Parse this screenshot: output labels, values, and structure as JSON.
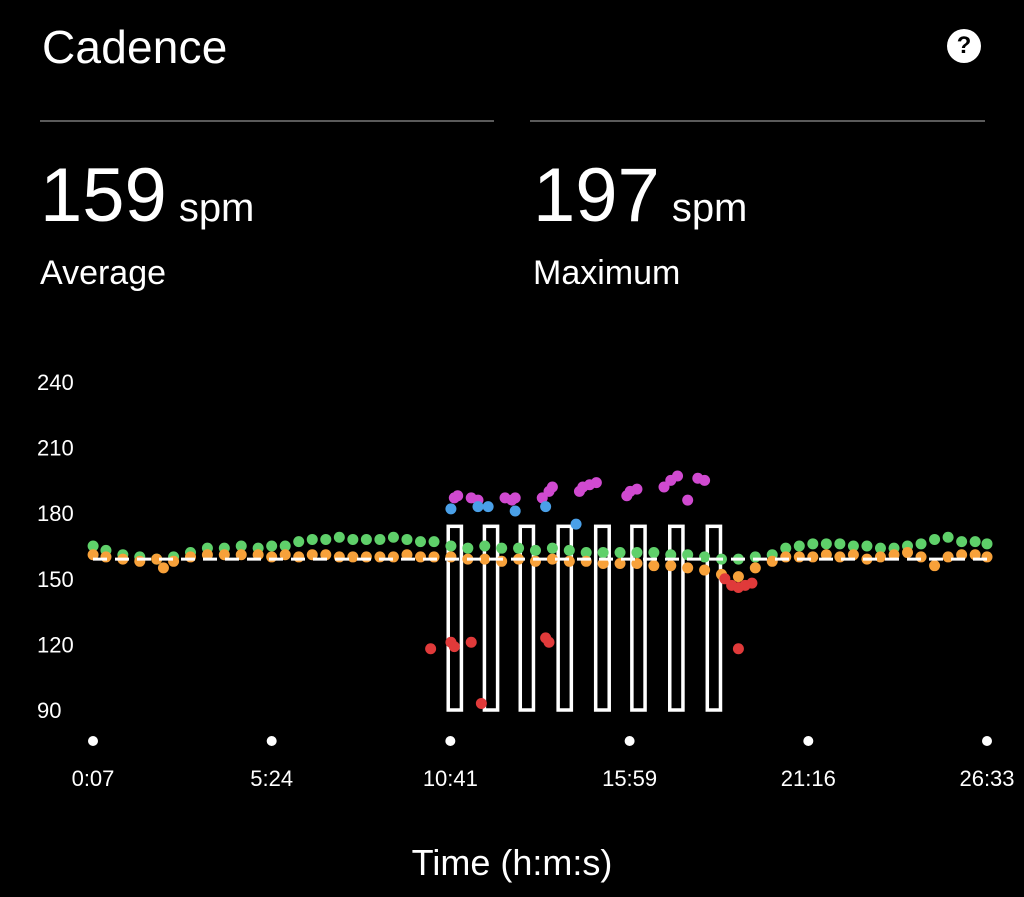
{
  "header": {
    "title": "Cadence",
    "help_icon": "?"
  },
  "stats": {
    "average": {
      "value": "159",
      "unit": "spm",
      "label": "Average"
    },
    "maximum": {
      "value": "197",
      "unit": "spm",
      "label": "Maximum"
    }
  },
  "chart_data": {
    "type": "scatter",
    "xlabel": "Time (h:m:s)",
    "ylabel": "",
    "ylim": [
      90,
      240
    ],
    "xlim": [
      0.117,
      26.55
    ],
    "y_ticks": [
      240,
      210,
      180,
      150,
      120,
      90
    ],
    "x_ticks": [
      {
        "value": 0.117,
        "label": "0:07"
      },
      {
        "value": 5.4,
        "label": "5:24"
      },
      {
        "value": 10.683,
        "label": "10:41"
      },
      {
        "value": 15.983,
        "label": "15:59"
      },
      {
        "value": 21.267,
        "label": "21:16"
      },
      {
        "value": 26.55,
        "label": "26:33"
      }
    ],
    "average_line": 159,
    "colors": {
      "green": "#5fd06a",
      "orange": "#f7a13a",
      "red": "#e03a3a",
      "purple": "#d04ad0",
      "blue": "#4aa0e8",
      "background": "#000000",
      "foreground": "#ffffff"
    },
    "series": [
      {
        "color": "green",
        "points": [
          [
            0.12,
            165
          ],
          [
            0.5,
            163
          ],
          [
            1.0,
            161
          ],
          [
            1.5,
            160
          ],
          [
            2.0,
            159
          ],
          [
            2.5,
            160
          ],
          [
            3.0,
            162
          ],
          [
            3.5,
            164
          ],
          [
            4.0,
            164
          ],
          [
            4.5,
            165
          ],
          [
            5.0,
            164
          ],
          [
            5.4,
            165
          ],
          [
            5.8,
            165
          ],
          [
            6.2,
            167
          ],
          [
            6.6,
            168
          ],
          [
            7.0,
            168
          ],
          [
            7.4,
            169
          ],
          [
            7.8,
            168
          ],
          [
            8.2,
            168
          ],
          [
            8.6,
            168
          ],
          [
            9.0,
            169
          ],
          [
            9.4,
            168
          ],
          [
            9.8,
            167
          ],
          [
            10.2,
            167
          ],
          [
            10.7,
            165
          ],
          [
            11.2,
            164
          ],
          [
            11.7,
            165
          ],
          [
            12.2,
            164
          ],
          [
            12.7,
            164
          ],
          [
            13.2,
            163
          ],
          [
            13.7,
            164
          ],
          [
            14.2,
            163
          ],
          [
            14.7,
            162
          ],
          [
            15.2,
            162
          ],
          [
            15.7,
            162
          ],
          [
            16.2,
            162
          ],
          [
            16.7,
            162
          ],
          [
            17.2,
            161
          ],
          [
            17.7,
            161
          ],
          [
            18.2,
            160
          ],
          [
            18.7,
            159
          ],
          [
            19.2,
            159
          ],
          [
            19.7,
            160
          ],
          [
            20.2,
            161
          ],
          [
            20.6,
            164
          ],
          [
            21.0,
            165
          ],
          [
            21.4,
            166
          ],
          [
            21.8,
            166
          ],
          [
            22.2,
            166
          ],
          [
            22.6,
            165
          ],
          [
            23.0,
            165
          ],
          [
            23.4,
            164
          ],
          [
            23.8,
            164
          ],
          [
            24.2,
            165
          ],
          [
            24.6,
            166
          ],
          [
            25.0,
            168
          ],
          [
            25.4,
            169
          ],
          [
            25.8,
            167
          ],
          [
            26.2,
            167
          ],
          [
            26.55,
            166
          ]
        ]
      },
      {
        "color": "orange",
        "points": [
          [
            0.12,
            161
          ],
          [
            0.5,
            160
          ],
          [
            1.0,
            159
          ],
          [
            1.5,
            158
          ],
          [
            2.0,
            159
          ],
          [
            2.2,
            155
          ],
          [
            2.5,
            158
          ],
          [
            3.0,
            160
          ],
          [
            3.5,
            161
          ],
          [
            4.0,
            161
          ],
          [
            4.5,
            161
          ],
          [
            5.0,
            161
          ],
          [
            5.4,
            160
          ],
          [
            5.8,
            161
          ],
          [
            6.2,
            160
          ],
          [
            6.6,
            161
          ],
          [
            7.0,
            161
          ],
          [
            7.4,
            160
          ],
          [
            7.8,
            160
          ],
          [
            8.2,
            160
          ],
          [
            8.6,
            160
          ],
          [
            9.0,
            160
          ],
          [
            9.4,
            161
          ],
          [
            9.8,
            160
          ],
          [
            10.2,
            160
          ],
          [
            10.7,
            160
          ],
          [
            11.2,
            159
          ],
          [
            11.7,
            159
          ],
          [
            12.2,
            158
          ],
          [
            12.7,
            159
          ],
          [
            13.2,
            158
          ],
          [
            13.7,
            159
          ],
          [
            14.2,
            158
          ],
          [
            14.7,
            158
          ],
          [
            15.2,
            157
          ],
          [
            15.7,
            157
          ],
          [
            16.2,
            157
          ],
          [
            16.7,
            156
          ],
          [
            17.2,
            156
          ],
          [
            17.7,
            155
          ],
          [
            18.2,
            154
          ],
          [
            18.7,
            152
          ],
          [
            19.2,
            151
          ],
          [
            19.7,
            155
          ],
          [
            20.2,
            158
          ],
          [
            20.6,
            160
          ],
          [
            21.0,
            160
          ],
          [
            21.4,
            160
          ],
          [
            21.8,
            161
          ],
          [
            22.2,
            160
          ],
          [
            22.6,
            161
          ],
          [
            23.0,
            159
          ],
          [
            23.4,
            160
          ],
          [
            23.8,
            161
          ],
          [
            24.2,
            162
          ],
          [
            24.6,
            160
          ],
          [
            25.0,
            156
          ],
          [
            25.4,
            160
          ],
          [
            25.8,
            161
          ],
          [
            26.2,
            161
          ],
          [
            26.55,
            160
          ]
        ]
      },
      {
        "color": "red",
        "points": [
          [
            10.1,
            118
          ],
          [
            10.7,
            121
          ],
          [
            10.8,
            119
          ],
          [
            11.3,
            121
          ],
          [
            11.6,
            93
          ],
          [
            13.5,
            123
          ],
          [
            13.6,
            121
          ],
          [
            18.8,
            150
          ],
          [
            19.0,
            147
          ],
          [
            19.2,
            146
          ],
          [
            19.4,
            147
          ],
          [
            19.6,
            148
          ],
          [
            19.2,
            118
          ]
        ]
      },
      {
        "color": "purple",
        "points": [
          [
            10.8,
            187
          ],
          [
            10.9,
            188
          ],
          [
            11.3,
            187
          ],
          [
            11.5,
            186
          ],
          [
            12.3,
            187
          ],
          [
            12.5,
            186
          ],
          [
            12.6,
            187
          ],
          [
            13.4,
            187
          ],
          [
            13.6,
            190
          ],
          [
            13.7,
            192
          ],
          [
            14.5,
            190
          ],
          [
            14.6,
            192
          ],
          [
            14.8,
            193
          ],
          [
            15.0,
            194
          ],
          [
            15.9,
            188
          ],
          [
            16.0,
            190
          ],
          [
            16.2,
            191
          ],
          [
            17.0,
            192
          ],
          [
            17.2,
            195
          ],
          [
            17.4,
            197
          ],
          [
            17.7,
            186
          ],
          [
            18.0,
            196
          ],
          [
            18.2,
            195
          ]
        ]
      },
      {
        "color": "blue",
        "points": [
          [
            10.7,
            182
          ],
          [
            11.5,
            183
          ],
          [
            11.8,
            183
          ],
          [
            12.6,
            181
          ],
          [
            13.5,
            183
          ],
          [
            14.4,
            175
          ]
        ]
      }
    ],
    "effort_bars": [
      {
        "x_start": 10.62,
        "x_end": 11.01,
        "y_top": 174
      },
      {
        "x_start": 11.69,
        "x_end": 12.08,
        "y_top": 174
      },
      {
        "x_start": 12.75,
        "x_end": 13.14,
        "y_top": 174
      },
      {
        "x_start": 13.87,
        "x_end": 14.26,
        "y_top": 174
      },
      {
        "x_start": 14.98,
        "x_end": 15.38,
        "y_top": 174
      },
      {
        "x_start": 16.05,
        "x_end": 16.44,
        "y_top": 174
      },
      {
        "x_start": 17.17,
        "x_end": 17.56,
        "y_top": 174
      },
      {
        "x_start": 18.28,
        "x_end": 18.67,
        "y_top": 174
      }
    ]
  }
}
